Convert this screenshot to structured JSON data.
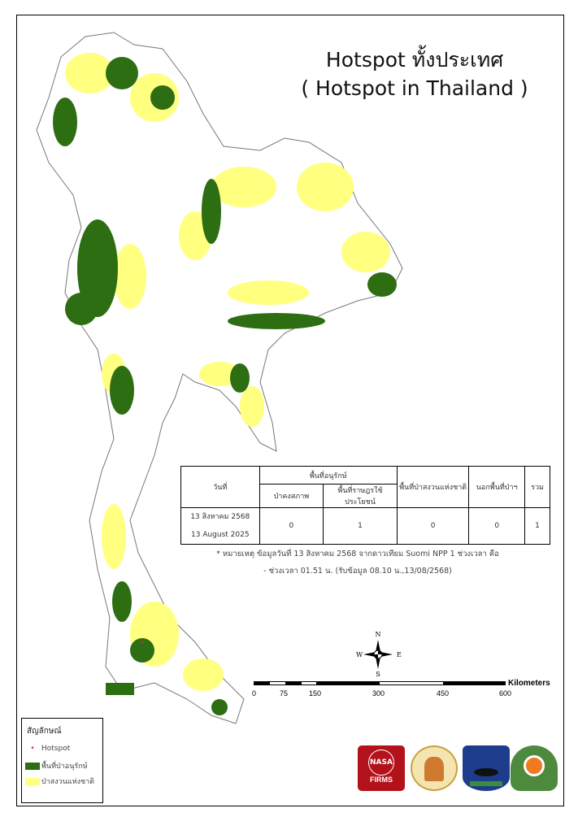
{
  "title": {
    "line1": "Hotspot ทั้งประเทศ",
    "line2": "( Hotspot in Thailand )"
  },
  "table": {
    "header_date": "วันที่",
    "header_conservation": "พื้นที่อนุรักษ์",
    "sub_intact_forest": "ป่าคงสภาพ",
    "sub_people_use": "พื้นที่ราษฎรใช้ประโยชน์",
    "header_national_reserve": "พื้นที่ป่าสงวนแห่งชาติ",
    "header_outside_forest": "นอกพื้นที่ป่าฯ",
    "header_total": "รวม",
    "date_th": "13 สิงหาคม 2568",
    "date_en": "13 August 2025",
    "intact_forest": "0",
    "people_use": "1",
    "national_reserve": "0",
    "outside_forest": "0",
    "total": "1"
  },
  "note": {
    "line1": "* หมายเหตุ ข้อมูลวันที่ 13 สิงหาคม 2568 จากดาวเทียม Suomi NPP 1 ช่วงเวลา คือ",
    "line2": "- ช่วงเวลา 01.51 น. (รับข้อมูล 08.10 น.,13/08/2568)"
  },
  "compass": {
    "n": "N",
    "s": "S",
    "e": "E",
    "w": "W"
  },
  "scale_bar": {
    "unit": "Kilometers",
    "ticks": [
      "0",
      "75",
      "150",
      "300",
      "450",
      "600"
    ]
  },
  "legend": {
    "title": "สัญลักษณ์",
    "items": [
      {
        "label": "Hotspot",
        "color": "#c0392b"
      },
      {
        "label": "พื้นที่ป่าอนุรักษ์",
        "color": "#2d6e12"
      },
      {
        "label": "ป่าสงวนแห่งชาติ",
        "color": "#ffff80"
      }
    ]
  },
  "logos": {
    "nasa": "FIRMS"
  },
  "colors": {
    "conservation": "#2d6e12",
    "national_reserve": "#ffff80",
    "boundary": "#888888"
  }
}
